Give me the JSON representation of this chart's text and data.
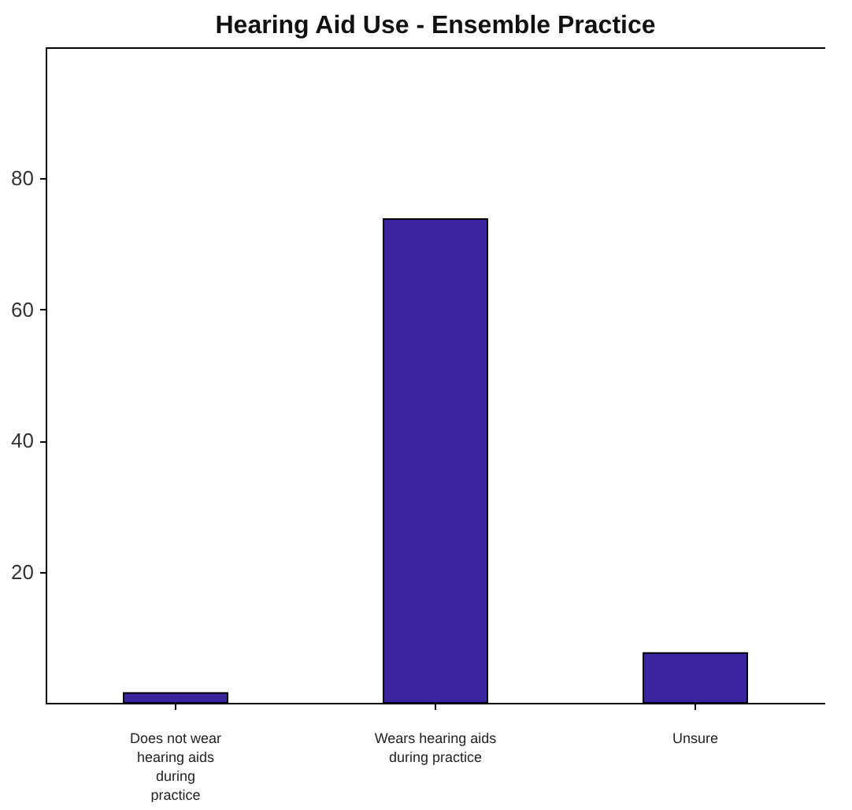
{
  "chart_data": {
    "type": "bar",
    "title": "Hearing Aid Use - Ensemble Practice",
    "categories": [
      "Does not wear hearing aids during practice",
      "Wears hearing aids during practice",
      "Unsure"
    ],
    "values": [
      1.5,
      73.8,
      7.6
    ],
    "color": "#3b24a0",
    "ylim": [
      0,
      100
    ],
    "yticks": [
      20,
      40,
      60,
      80
    ],
    "grid": false
  }
}
